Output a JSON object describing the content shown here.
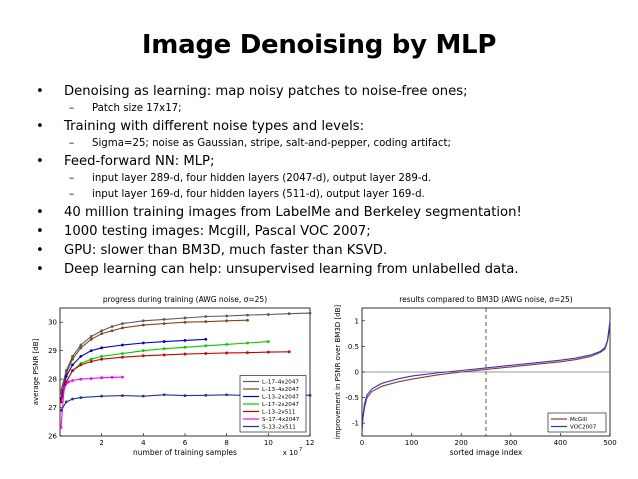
{
  "slide": {
    "title": "Image Denoising by MLP",
    "bullets": [
      {
        "text": "Denoising as learning: map noisy patches to noise-free ones;",
        "subs": [
          "Patch size 17x17;"
        ]
      },
      {
        "text": "Training with different noise types and levels:",
        "subs": [
          "Sigma=25; noise as Gaussian, stripe, salt-and-pepper, coding artifact;"
        ]
      },
      {
        "text": "Feed-forward NN: MLP;",
        "subs": [
          "input layer 289-d, four hidden layers (2047-d), output layer 289-d.",
          "input layer 169-d, four hidden layers (511-d), output layer 169-d."
        ]
      },
      {
        "text": "40 million training images from LabelMe and Berkeley segmentation!",
        "subs": []
      },
      {
        "text": "1000 testing images: Mcgill, Pascal VOC 2007;",
        "subs": []
      },
      {
        "text": "GPU: slower than BM3D, much faster than KSVD.",
        "subs": []
      },
      {
        "text": "Deep learning can help: unsupervised learning from unlabelled data.",
        "subs": []
      }
    ]
  },
  "chart_data": [
    {
      "type": "line",
      "title": "progress during training (AWG noise, σ=25)",
      "xlabel": "number of training samples",
      "ylabel": "average PSNR [dB]",
      "x_multiplier_label": "x 10",
      "x_multiplier_exp": "7",
      "xlim": [
        0,
        12
      ],
      "ylim": [
        26,
        30.5
      ],
      "xticks": [
        2,
        4,
        6,
        8,
        10,
        12
      ],
      "yticks": [
        26,
        27,
        28,
        29,
        30
      ],
      "legend_position": "bottom-right",
      "series": [
        {
          "name": "L–17–4x2047",
          "color": "#5a5a5a",
          "x": [
            0.05,
            0.3,
            0.6,
            1,
            1.5,
            2,
            2.5,
            3,
            4,
            5,
            6,
            7,
            8,
            9,
            10,
            11,
            12
          ],
          "values": [
            27.6,
            28.3,
            28.8,
            29.2,
            29.5,
            29.7,
            29.85,
            29.95,
            30.05,
            30.1,
            30.15,
            30.2,
            30.22,
            30.25,
            30.27,
            30.3,
            30.32
          ]
        },
        {
          "name": "L–13–4x2047",
          "color": "#8b4513",
          "x": [
            0.05,
            0.3,
            0.6,
            1,
            1.5,
            2,
            2.5,
            3,
            4,
            5,
            6,
            7,
            8,
            9
          ],
          "values": [
            27.5,
            28.2,
            28.7,
            29.1,
            29.4,
            29.6,
            29.7,
            29.8,
            29.9,
            29.95,
            30.0,
            30.02,
            30.05,
            30.07
          ]
        },
        {
          "name": "L–13–2x2047",
          "color": "#0000cc",
          "x": [
            0.05,
            0.3,
            0.6,
            1,
            1.5,
            2,
            3,
            4,
            5,
            6,
            7
          ],
          "values": [
            27.3,
            28.1,
            28.5,
            28.8,
            29.0,
            29.1,
            29.2,
            29.27,
            29.32,
            29.36,
            29.4
          ]
        },
        {
          "name": "L–17–2x2047",
          "color": "#00cc00",
          "x": [
            0.05,
            0.3,
            0.6,
            1,
            1.5,
            2,
            3,
            4,
            5,
            6,
            7,
            8,
            9,
            10
          ],
          "values": [
            27.2,
            27.9,
            28.3,
            28.55,
            28.7,
            28.8,
            28.9,
            29.0,
            29.07,
            29.12,
            29.17,
            29.22,
            29.27,
            29.32
          ]
        },
        {
          "name": "L–13–2x511",
          "color": "#cc0000",
          "x": [
            0.05,
            0.3,
            0.6,
            1,
            1.5,
            2,
            3,
            4,
            5,
            6,
            7,
            8,
            9,
            10,
            11
          ],
          "values": [
            27.2,
            27.9,
            28.3,
            28.5,
            28.62,
            28.7,
            28.77,
            28.82,
            28.85,
            28.88,
            28.9,
            28.92,
            28.93,
            28.95,
            28.96
          ]
        },
        {
          "name": "S–17–4x2047",
          "color": "#ff00ff",
          "x": [
            0.05,
            0.2,
            0.4,
            0.6,
            1,
            1.5,
            2,
            2.5,
            3
          ],
          "values": [
            26.3,
            27.7,
            27.9,
            27.95,
            28.0,
            28.02,
            28.05,
            28.06,
            28.07
          ]
        },
        {
          "name": "S–13–2x511",
          "color": "#223399",
          "x": [
            0.05,
            0.3,
            0.6,
            1,
            2,
            3,
            4,
            5,
            6,
            7,
            8,
            9,
            10,
            11,
            12
          ],
          "values": [
            26.9,
            27.2,
            27.3,
            27.35,
            27.4,
            27.42,
            27.4,
            27.45,
            27.42,
            27.43,
            27.45,
            27.42,
            27.44,
            27.45,
            27.43
          ]
        }
      ]
    },
    {
      "type": "line",
      "title": "results compared to BM3D (AWG noise, σ=25)",
      "xlabel": "sorted image index",
      "ylabel": "improvement in PSNR over BM3D [dB]",
      "xlim": [
        0,
        500
      ],
      "ylim": [
        -1.25,
        1.25
      ],
      "xticks": [
        0,
        100,
        200,
        300,
        400,
        500
      ],
      "yticks": [
        -1,
        -0.5,
        0,
        0.5,
        1
      ],
      "vline": 250,
      "legend_position": "bottom-right",
      "series": [
        {
          "name": "McGill",
          "color": "#8b3a3a",
          "x": [
            0,
            2,
            5,
            10,
            20,
            40,
            70,
            100,
            150,
            200,
            250,
            300,
            350,
            400,
            430,
            460,
            480,
            490,
            495,
            500
          ],
          "values": [
            -1.2,
            -0.9,
            -0.7,
            -0.5,
            -0.38,
            -0.28,
            -0.2,
            -0.14,
            -0.06,
            0.0,
            0.05,
            0.1,
            0.15,
            0.2,
            0.24,
            0.3,
            0.38,
            0.45,
            0.6,
            0.9
          ]
        },
        {
          "name": "VOC2007",
          "color": "#3333cc",
          "x": [
            0,
            2,
            5,
            10,
            20,
            40,
            70,
            100,
            150,
            200,
            250,
            300,
            350,
            400,
            430,
            460,
            480,
            490,
            495,
            500
          ],
          "values": [
            -1.05,
            -0.85,
            -0.62,
            -0.45,
            -0.33,
            -0.22,
            -0.14,
            -0.08,
            -0.02,
            0.03,
            0.08,
            0.13,
            0.18,
            0.23,
            0.27,
            0.33,
            0.4,
            0.48,
            0.62,
            1.0
          ]
        }
      ]
    }
  ]
}
